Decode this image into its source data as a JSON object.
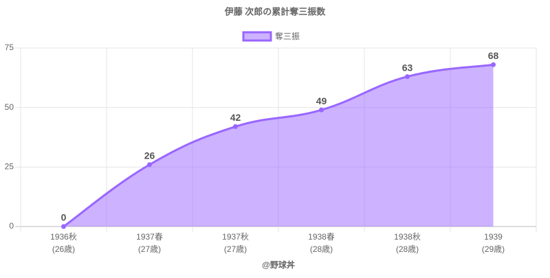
{
  "chart_data": {
    "type": "line",
    "title": "伊藤 次郎の累計奪三振数",
    "categories": [
      [
        "1936秋",
        "(26歳)"
      ],
      [
        "1937春",
        "(27歳)"
      ],
      [
        "1937秋",
        "(27歳)"
      ],
      [
        "1938春",
        "(28歳)"
      ],
      [
        "1938秋",
        "(28歳)"
      ],
      [
        "1939",
        "(29歳)"
      ]
    ],
    "series": [
      {
        "name": "奪三振",
        "color": "#9966ff",
        "fill": true,
        "values": [
          0,
          26,
          42,
          49,
          63,
          68
        ]
      }
    ],
    "data_labels": true,
    "ylim": [
      0,
      75
    ],
    "yticks": [
      0,
      25,
      50,
      75
    ],
    "grid": true,
    "legend": "top",
    "xlabel": "@野球丼"
  }
}
